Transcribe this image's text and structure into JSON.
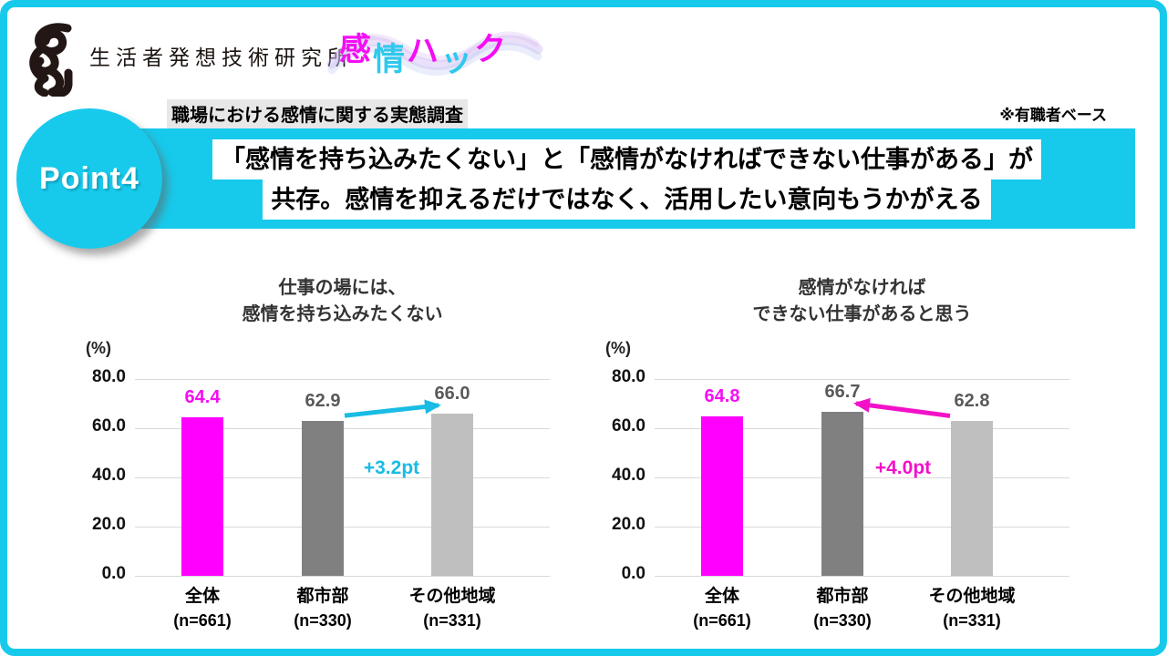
{
  "colors": {
    "accent_cyan": "#17CAEC",
    "arrow_cyan": "#18BCE4",
    "magenta": "#FF00FF",
    "arrow_magenta": "#F211C9",
    "bar_dark_gray": "#808080",
    "bar_light_gray": "#BFBFBF",
    "value_gray": "#595959",
    "gridline": "#D9D9D9",
    "label_bg_gray": "#E7E7E7"
  },
  "header": {
    "logo_text": "生活者発想技術研究所",
    "brand_title_chars": [
      {
        "ch": "感",
        "color": "#F50DF5",
        "dy": 0
      },
      {
        "ch": "情",
        "color": "#2EC9EC",
        "dy": 11
      },
      {
        "ch": "ハ",
        "color": "#F50DF5",
        "dy": 2
      },
      {
        "ch": "ッ",
        "color": "#2EC9EC",
        "dy": 12
      },
      {
        "ch": "ク",
        "color": "#F50DF5",
        "dy": 0
      }
    ],
    "note": "※有職者ベース"
  },
  "survey_label": "職場における感情に関する実態調査",
  "point_badge": "Point4",
  "headline": {
    "line1": "「感情を持ち込みたくない」と「感情がなければできない仕事がある」が",
    "line2": "共存。感情を抑えるだけではなく、活用したい意向もうかがえる"
  },
  "chart_data": [
    {
      "type": "bar",
      "title": "仕事の場には、\n感情を持ち込みたくない",
      "unit_label": "(%)",
      "ylim": [
        0,
        80
      ],
      "yticks": [
        80.0,
        60.0,
        40.0,
        20.0,
        0.0
      ],
      "grid": true,
      "legend": "none",
      "categories": [
        "全体",
        "都市部",
        "その他地域"
      ],
      "sample_sizes": [
        "(n=661)",
        "(n=330)",
        "(n=331)"
      ],
      "values": [
        64.4,
        62.9,
        66.0
      ],
      "bar_colors": [
        "#FF00FF",
        "#808080",
        "#BFBFBF"
      ],
      "value_label_colors": [
        "#F50DF5",
        "#595959",
        "#595959"
      ],
      "annotation": {
        "label": "+3.2pt",
        "from_index": 1,
        "to_index": 2,
        "color": "#18BCE4"
      }
    },
    {
      "type": "bar",
      "title": "感情がなければ\nできない仕事があると思う",
      "unit_label": "(%)",
      "ylim": [
        0,
        80
      ],
      "yticks": [
        80.0,
        60.0,
        40.0,
        20.0,
        0.0
      ],
      "grid": true,
      "legend": "none",
      "categories": [
        "全体",
        "都市部",
        "その他地域"
      ],
      "sample_sizes": [
        "(n=661)",
        "(n=330)",
        "(n=331)"
      ],
      "values": [
        64.8,
        66.7,
        62.8
      ],
      "bar_colors": [
        "#FF00FF",
        "#808080",
        "#BFBFBF"
      ],
      "value_label_colors": [
        "#F50DF5",
        "#595959",
        "#595959"
      ],
      "annotation": {
        "label": "+4.0pt",
        "from_index": 2,
        "to_index": 1,
        "color": "#F211C9"
      }
    }
  ]
}
